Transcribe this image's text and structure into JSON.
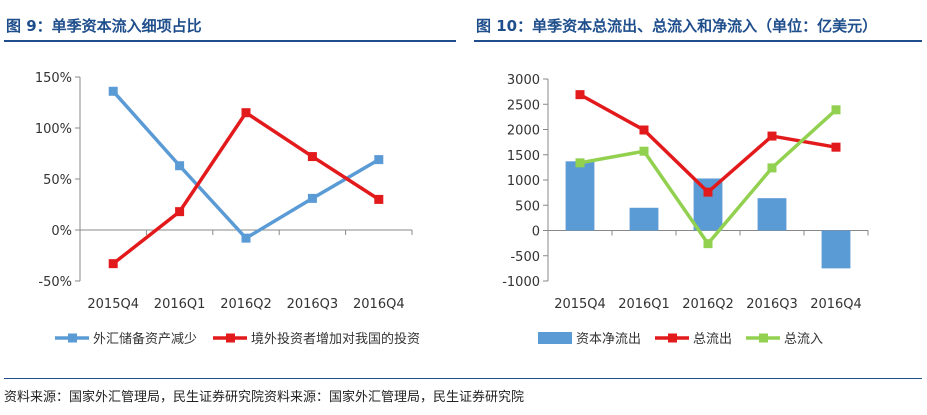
{
  "left_panel": {
    "title": "图 9：单季资本流入细项占比"
  },
  "right_panel": {
    "title": "图 10：单季资本总流出、总流入和净流入（单位：亿美元）"
  },
  "source_note": "资料来源：国家外汇管理局，民生证券研究院资料来源：国家外汇管理局，民生证券研究院",
  "colors": {
    "title": "#1f4e8c",
    "blue": "#5b9bd5",
    "red": "#e31a1c",
    "green": "#92d050",
    "bar": "#5b9bd5"
  },
  "chart_data": [
    {
      "type": "line",
      "categories": [
        "2015Q4",
        "2016Q1",
        "2016Q2",
        "2016Q3",
        "2016Q4"
      ],
      "ylim": [
        -50,
        150
      ],
      "yticks": [
        -50,
        0,
        50,
        100,
        150
      ],
      "ytick_labels": [
        "-50%",
        "0%",
        "50%",
        "100%",
        "150%"
      ],
      "grid": false,
      "legend": "bottom",
      "series": [
        {
          "name": "外汇储备资产减少",
          "color": "#5b9bd5",
          "values": [
            136,
            63,
            -8,
            31,
            69
          ]
        },
        {
          "name": "境外投资者增加对我国的投资",
          "color": "#e31a1c",
          "values": [
            -33,
            18,
            115,
            72,
            30
          ]
        }
      ]
    },
    {
      "type": "bar+line",
      "categories": [
        "2015Q4",
        "2016Q1",
        "2016Q2",
        "2016Q3",
        "2016Q4"
      ],
      "ylim": [
        -1000,
        3000
      ],
      "yticks": [
        -1000,
        -500,
        0,
        500,
        1000,
        1500,
        2000,
        2500,
        3000
      ],
      "ytick_labels": [
        "-1000",
        "-500",
        "0",
        "500",
        "1000",
        "1500",
        "2000",
        "2500",
        "3000"
      ],
      "grid": false,
      "legend": "bottom",
      "series": [
        {
          "name": "资本净流出",
          "kind": "bar",
          "color": "#5b9bd5",
          "values": [
            1370,
            450,
            1030,
            640,
            -750
          ]
        },
        {
          "name": "总流出",
          "kind": "line",
          "color": "#e31a1c",
          "values": [
            2690,
            1990,
            760,
            1870,
            1650
          ]
        },
        {
          "name": "总流入",
          "kind": "line",
          "color": "#92d050",
          "values": [
            1340,
            1570,
            -260,
            1240,
            2390
          ]
        }
      ]
    }
  ]
}
